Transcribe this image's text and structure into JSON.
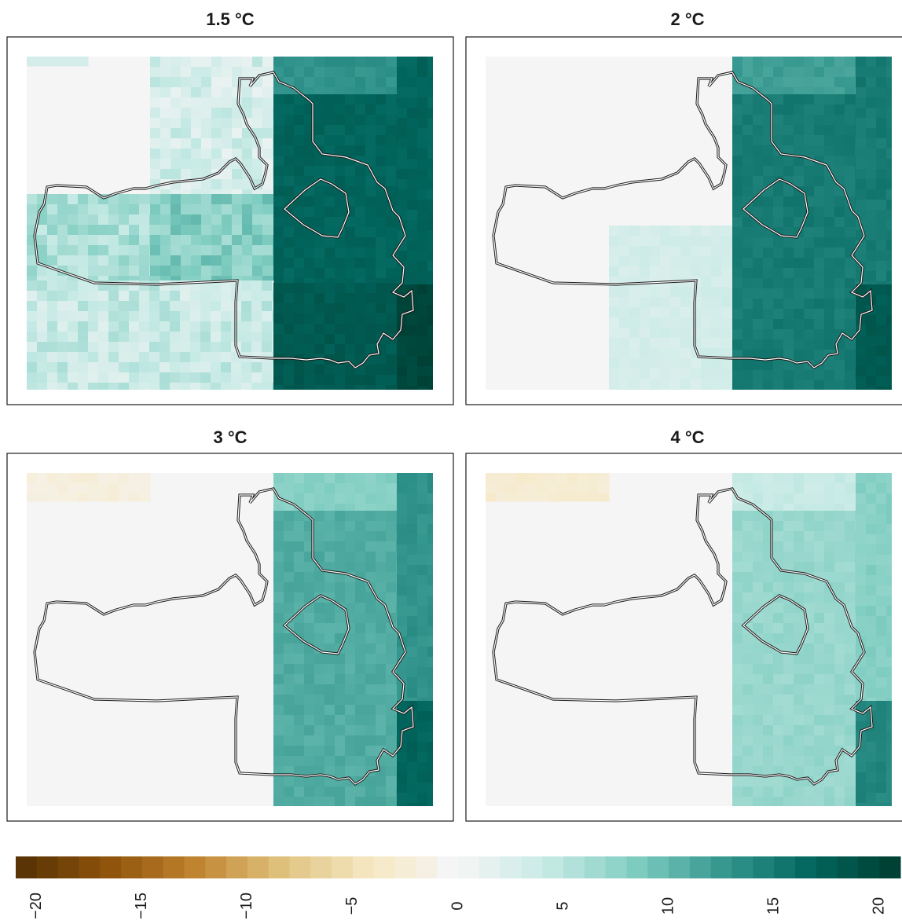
{
  "chart_data": {
    "type": "heatmap",
    "panels": [
      {
        "title": "1.5 °C",
        "zones": [
          {
            "region": "north-west",
            "value": 0,
            "patches": [
              {
                "region": "top-left",
                "value": 3
              }
            ]
          },
          {
            "region": "north-middle",
            "value": 3
          },
          {
            "region": "north-east",
            "value": 13
          },
          {
            "region": "far-east",
            "value": 17
          },
          {
            "region": "central-west",
            "value": 6
          },
          {
            "region": "central-middle",
            "value": 8
          },
          {
            "region": "central-east",
            "value": 17
          },
          {
            "region": "south-west",
            "value": 4
          },
          {
            "region": "south-east",
            "value": 18
          },
          {
            "region": "south-east-corner",
            "value": 20
          }
        ]
      },
      {
        "title": "2 °C",
        "zones": [
          {
            "region": "west",
            "value": 0
          },
          {
            "region": "central-south",
            "value": 3
          },
          {
            "region": "north-east",
            "value": 12
          },
          {
            "region": "east",
            "value": 15
          },
          {
            "region": "far-east",
            "value": 15
          },
          {
            "region": "south-east-corner",
            "value": 18
          }
        ]
      },
      {
        "title": "3 °C",
        "zones": [
          {
            "region": "west",
            "value": 0
          },
          {
            "region": "top-left",
            "value": -2
          },
          {
            "region": "north-east",
            "value": 8
          },
          {
            "region": "east",
            "value": 11
          },
          {
            "region": "far-east",
            "value": 13
          },
          {
            "region": "south-east-corner",
            "value": 17
          }
        ]
      },
      {
        "title": "4 °C",
        "zones": [
          {
            "region": "west",
            "value": 0
          },
          {
            "region": "top-left",
            "value": -3
          },
          {
            "region": "north-east",
            "value": 4
          },
          {
            "region": "east",
            "value": 7
          },
          {
            "region": "far-east",
            "value": 8
          },
          {
            "region": "south-east-corner",
            "value": 14
          }
        ]
      }
    ],
    "colorbar": {
      "min": -21,
      "max": 21,
      "step": 1,
      "ticks": [
        "−20",
        "−15",
        "−10",
        "−5",
        "0",
        "5",
        "10",
        "15",
        "20"
      ],
      "tick_values": [
        -20,
        -15,
        -10,
        -5,
        0,
        5,
        10,
        15,
        20
      ],
      "palette": [
        "#543005",
        "#8c510a",
        "#bf812d",
        "#dfc27d",
        "#f6e8c3",
        "#f5f5f5",
        "#c7eae5",
        "#80cdc1",
        "#35978f",
        "#01665e",
        "#003c30"
      ]
    }
  }
}
